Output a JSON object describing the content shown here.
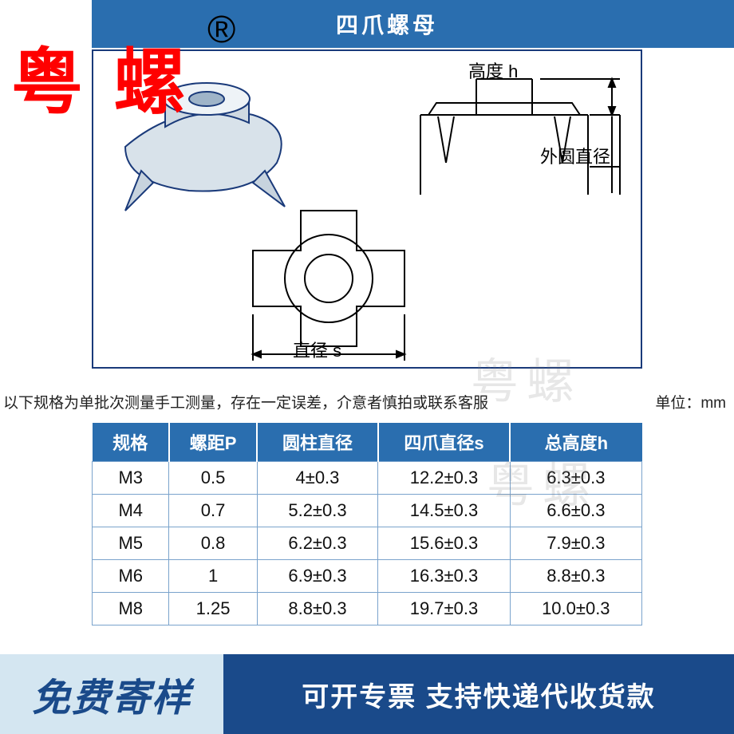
{
  "colors": {
    "header_blue": "#2a6eaf",
    "table_border": "#7aa3cc",
    "footer_left_bg": "#d4e6f1",
    "footer_left_text": "#1a4a8a",
    "footer_right_bg": "#1a4a8a",
    "brand_red": "#ff0000",
    "diagram_border": "#1a3a7a"
  },
  "brand": {
    "text": "粤 螺",
    "registered_mark": "®"
  },
  "header": {
    "title": "四爪螺母"
  },
  "diagram": {
    "labels": {
      "height": "高度 h",
      "outer_diameter": "外圆直径",
      "diameter": "直径 s"
    }
  },
  "watermark": "粤螺",
  "note": "以下规格为单批次测量手工测量，存在一定误差，介意者慎拍或联系客服",
  "unit_label": "单位：mm",
  "table": {
    "columns": [
      "规格",
      "螺距P",
      "圆柱直径",
      "四爪直径s",
      "总高度h"
    ],
    "column_widths_pct": [
      14,
      16,
      22,
      24,
      24
    ],
    "rows": [
      [
        "M3",
        "0.5",
        "4±0.3",
        "12.2±0.3",
        "6.3±0.3"
      ],
      [
        "M4",
        "0.7",
        "5.2±0.3",
        "14.5±0.3",
        "6.6±0.3"
      ],
      [
        "M5",
        "0.8",
        "6.2±0.3",
        "15.6±0.3",
        "7.9±0.3"
      ],
      [
        "M6",
        "1",
        "6.9±0.3",
        "16.3±0.3",
        "8.8±0.3"
      ],
      [
        "M8",
        "1.25",
        "8.8±0.3",
        "19.7±0.3",
        "10.0±0.3"
      ]
    ]
  },
  "footer": {
    "left": "免费寄样",
    "right": "可开专票 支持快递代收货款"
  }
}
